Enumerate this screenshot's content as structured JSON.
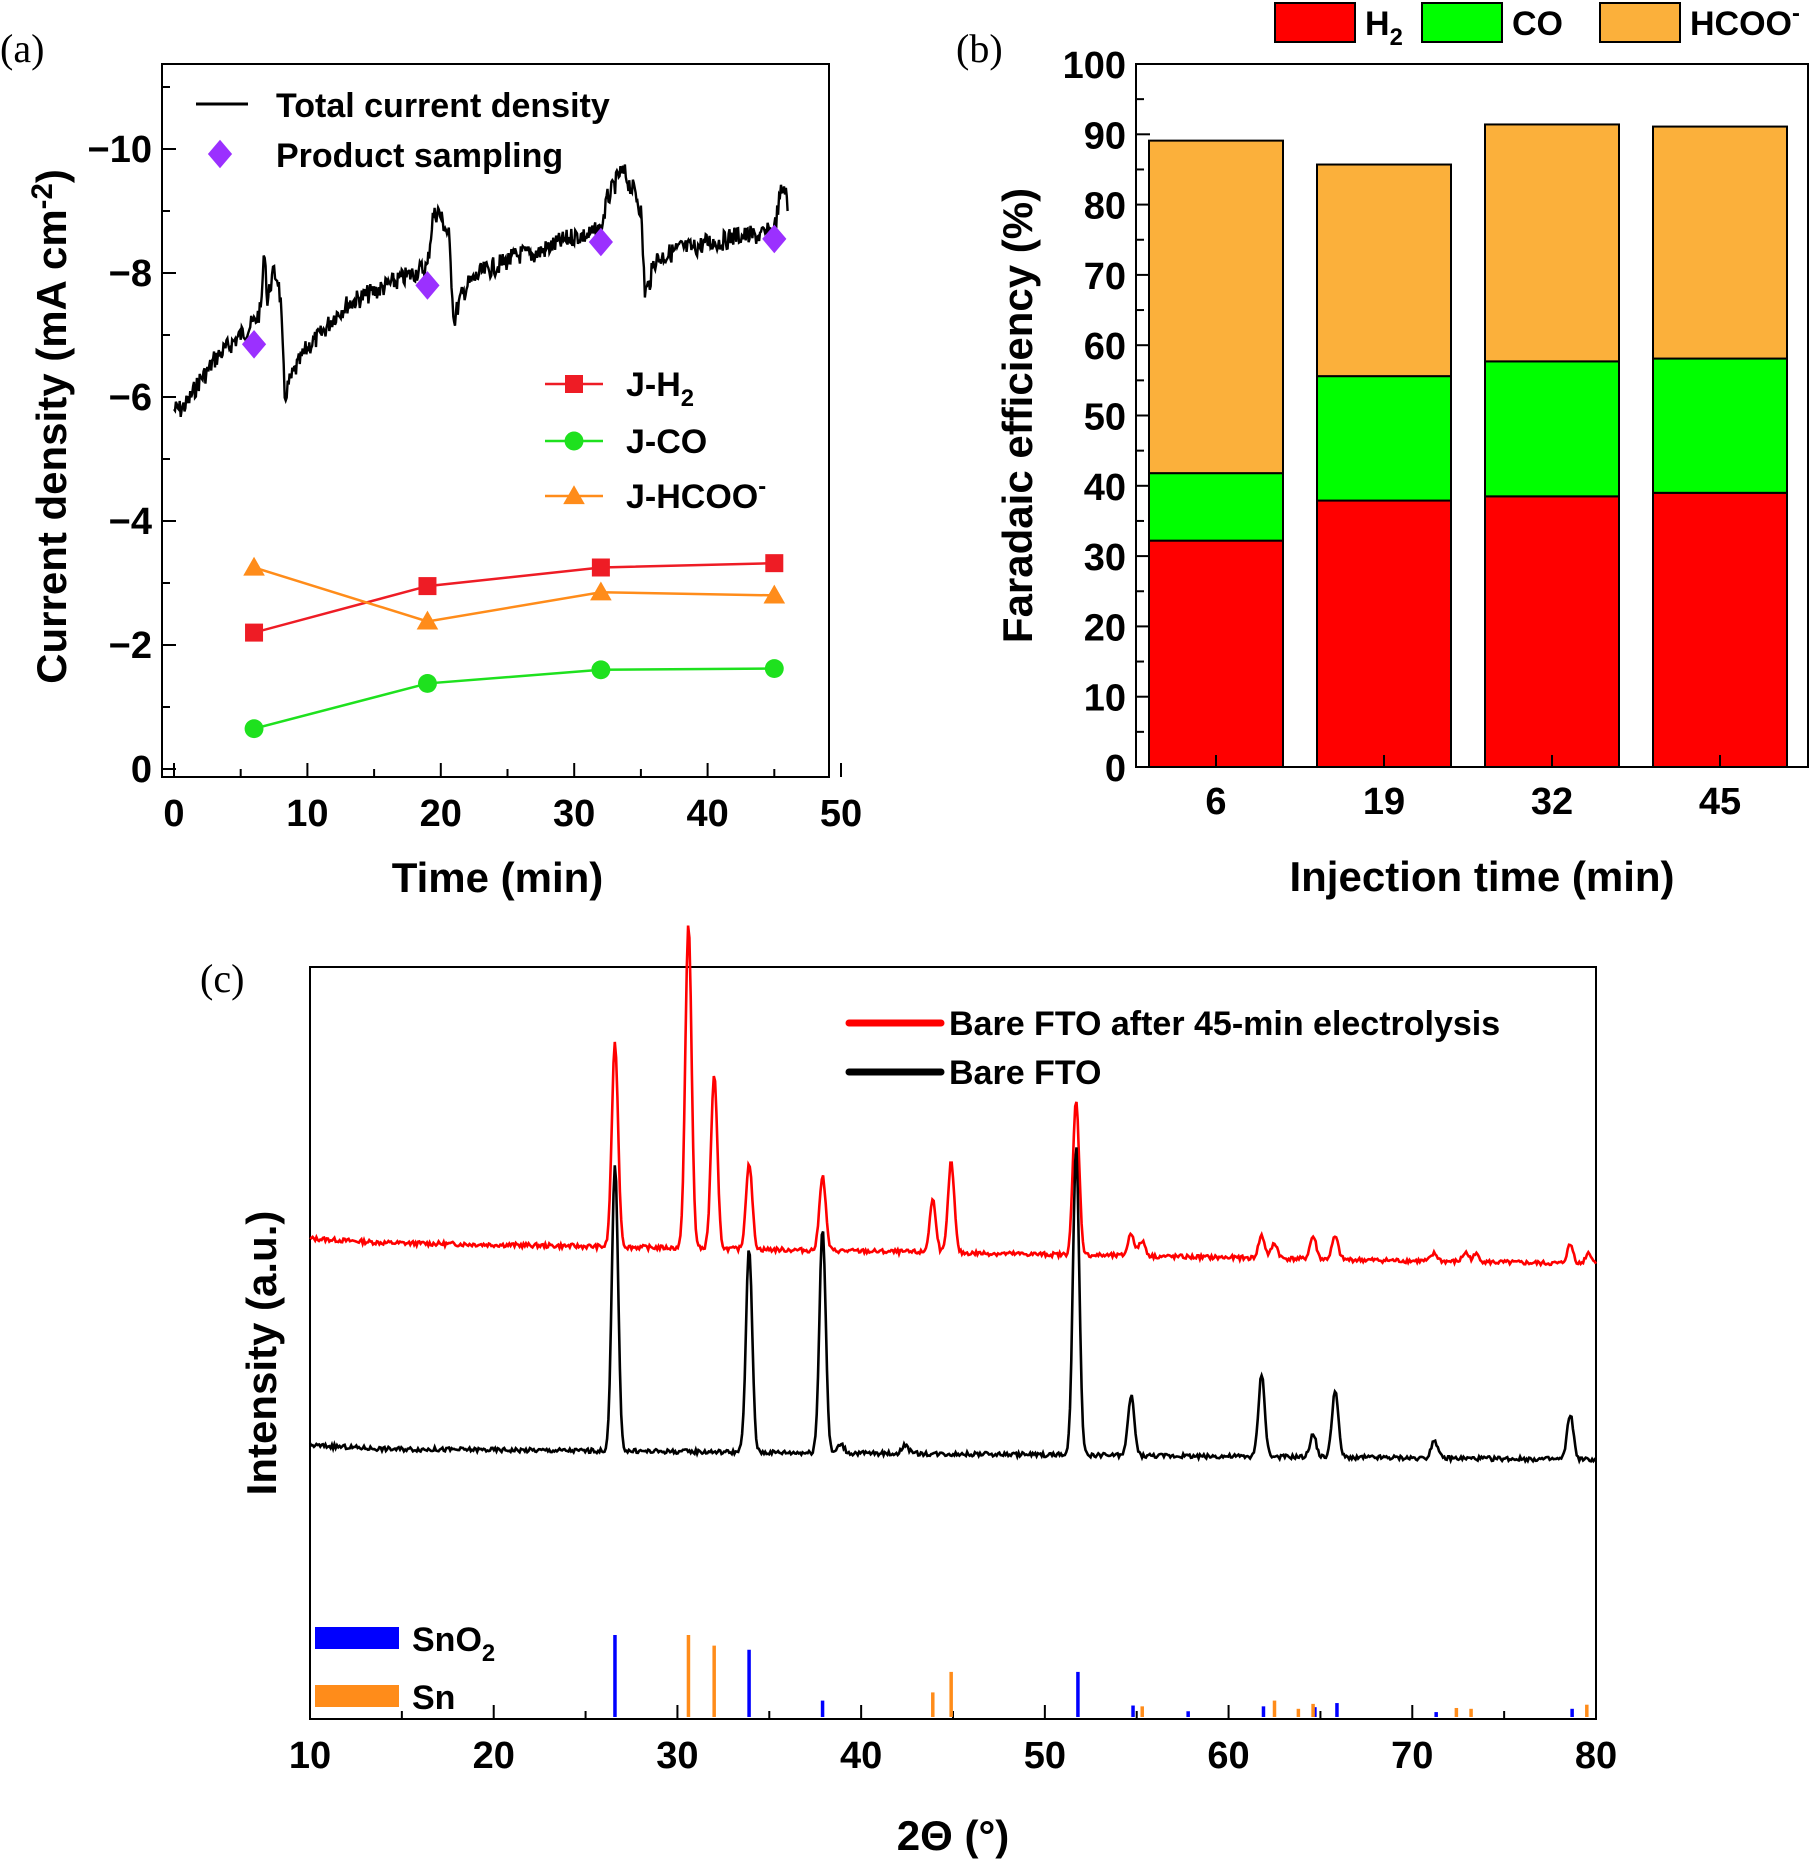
{
  "chart_data": [
    {
      "panel": "(a)",
      "type": "line",
      "xlabel": "Time (min)",
      "ylabel": "Current density (mA cm",
      "ylabel_sup": "-2",
      "ylabel_close": ")",
      "xlim": [
        0,
        50
      ],
      "ylim": [
        0,
        -11.5
      ],
      "xticks": [
        0,
        10,
        20,
        30,
        40,
        50
      ],
      "yticks": [
        0,
        -2,
        -4,
        -6,
        -8,
        -10
      ],
      "ytick_labels": [
        "0",
        "−2",
        "−4",
        "−6",
        "−8",
        "−10"
      ],
      "legend_top": [
        {
          "label": "Total current density",
          "color": "#000000",
          "marker": "line"
        },
        {
          "label": "Product sampling",
          "color": "#9b30ff",
          "marker": "diamond"
        }
      ],
      "total_current_density": {
        "name": "Total current density",
        "color": "#000000",
        "x": [
          0.0,
          0.5,
          1.0,
          1.5,
          2.0,
          2.5,
          3.0,
          3.5,
          4.0,
          4.5,
          5.0,
          5.5,
          6.0,
          6.5,
          6.8,
          7.0,
          7.2,
          7.5,
          7.8,
          8.0,
          8.3,
          8.6,
          9.0,
          9.5,
          10.0,
          11.0,
          12.0,
          13.0,
          14.0,
          15.0,
          16.0,
          17.0,
          18.0,
          19.0,
          19.4,
          19.8,
          20.2,
          20.6,
          21.0,
          21.2,
          21.5,
          22.0,
          23.0,
          24.0,
          25.0,
          26.0,
          27.0,
          28.0,
          29.0,
          30.0,
          31.0,
          32.0,
          32.5,
          33.0,
          33.4,
          33.8,
          34.2,
          34.6,
          35.0,
          35.3,
          35.6,
          36.0,
          37.0,
          38.0,
          39.0,
          40.0,
          41.0,
          42.0,
          43.0,
          44.0,
          45.0,
          45.5,
          45.8,
          46.0
        ],
        "y": [
          -5.8,
          -5.8,
          -5.9,
          -6.1,
          -6.3,
          -6.4,
          -6.6,
          -6.7,
          -6.8,
          -6.9,
          -7.0,
          -7.1,
          -7.2,
          -7.4,
          -8.4,
          -7.5,
          -7.8,
          -8.0,
          -7.9,
          -7.5,
          -6.0,
          -6.2,
          -6.4,
          -6.6,
          -6.8,
          -7.0,
          -7.3,
          -7.5,
          -7.6,
          -7.7,
          -7.8,
          -7.9,
          -8.0,
          -8.1,
          -8.9,
          -9.0,
          -8.8,
          -8.6,
          -7.2,
          -7.4,
          -7.6,
          -7.8,
          -8.0,
          -8.1,
          -8.2,
          -8.3,
          -8.3,
          -8.4,
          -8.5,
          -8.6,
          -8.6,
          -8.7,
          -9.2,
          -9.4,
          -9.6,
          -9.6,
          -9.4,
          -9.3,
          -9.0,
          -7.7,
          -7.8,
          -8.2,
          -8.3,
          -8.4,
          -8.4,
          -8.5,
          -8.5,
          -8.6,
          -8.6,
          -8.6,
          -8.7,
          -9.3,
          -9.4,
          -9.0
        ]
      },
      "product_sampling": {
        "name": "Product sampling",
        "color": "#9b30ff",
        "x": [
          6,
          19,
          32,
          45
        ],
        "y": [
          -6.85,
          -7.8,
          -8.5,
          -8.55
        ]
      },
      "series": [
        {
          "name": "J-H",
          "sub": "2",
          "sup": "",
          "color": "#ee1c25",
          "marker": "square",
          "x": [
            6,
            19,
            32,
            45
          ],
          "y": [
            -2.2,
            -2.95,
            -3.25,
            -3.32
          ]
        },
        {
          "name": "J-CO",
          "sub": "",
          "sup": "",
          "color": "#1ee11e",
          "marker": "circle",
          "x": [
            6,
            19,
            32,
            45
          ],
          "y": [
            -0.65,
            -1.38,
            -1.6,
            -1.62
          ]
        },
        {
          "name": "J-HCOO",
          "sub": "",
          "sup": "-",
          "color": "#ff8c1a",
          "marker": "triangle",
          "x": [
            6,
            19,
            32,
            45
          ],
          "y": [
            -3.25,
            -2.38,
            -2.85,
            -2.8
          ]
        }
      ]
    },
    {
      "panel": "(b)",
      "type": "bar",
      "stacked": true,
      "xlabel": "Injection time (min)",
      "ylabel": "Faradaic efficiency (%)",
      "ylim": [
        0,
        100
      ],
      "yticks": [
        0,
        10,
        20,
        30,
        40,
        50,
        60,
        70,
        80,
        90,
        100
      ],
      "categories": [
        "6",
        "19",
        "32",
        "45"
      ],
      "series": [
        {
          "name": "H",
          "sub": "2",
          "sup": "",
          "color": "#ff0000",
          "values": [
            32.2,
            37.9,
            38.5,
            39.0
          ]
        },
        {
          "name": "CO",
          "sub": "",
          "sup": "",
          "color": "#00ff00",
          "values": [
            9.6,
            17.7,
            19.2,
            19.1
          ]
        },
        {
          "name": "HCOO",
          "sub": "",
          "sup": "-",
          "color": "#fbb03b",
          "values": [
            47.3,
            30.1,
            33.7,
            33.0
          ]
        }
      ]
    },
    {
      "panel": "(c)",
      "type": "line",
      "xlabel": "2Θ (°)",
      "ylabel": "Intensity (a.u.)",
      "xlim": [
        10,
        80
      ],
      "xticks": [
        10,
        20,
        30,
        40,
        50,
        60,
        70,
        80
      ],
      "legend": [
        {
          "label": "Bare FTO after 45-min electrolysis",
          "color": "#ff0000"
        },
        {
          "label": "Bare FTO",
          "color": "#000000"
        }
      ],
      "series": [
        {
          "name": "Bare FTO after 45-min electrolysis",
          "color": "#ff0000",
          "baseline_start": 0.635,
          "baseline_end": 0.605,
          "peaks": [
            [
              26.6,
              0.27
            ],
            [
              30.6,
              0.43
            ],
            [
              32.0,
              0.23
            ],
            [
              33.9,
              0.115
            ],
            [
              37.9,
              0.1
            ],
            [
              43.9,
              0.07
            ],
            [
              44.9,
              0.12
            ],
            [
              51.7,
              0.205
            ],
            [
              54.7,
              0.03
            ],
            [
              55.3,
              0.02
            ],
            [
              61.8,
              0.03
            ],
            [
              62.5,
              0.02
            ],
            [
              64.6,
              0.03
            ],
            [
              65.8,
              0.03
            ],
            [
              71.2,
              0.01
            ],
            [
              72.9,
              0.012
            ],
            [
              73.5,
              0.01
            ],
            [
              78.6,
              0.025
            ],
            [
              79.6,
              0.015
            ]
          ]
        },
        {
          "name": "Bare FTO",
          "color": "#000000",
          "baseline_start": 0.36,
          "baseline_end": 0.345,
          "peaks": [
            [
              26.6,
              0.38
            ],
            [
              33.9,
              0.27
            ],
            [
              37.9,
              0.3
            ],
            [
              38.9,
              0.012
            ],
            [
              42.4,
              0.012
            ],
            [
              51.7,
              0.41
            ],
            [
              54.7,
              0.08
            ],
            [
              61.8,
              0.11
            ],
            [
              64.6,
              0.03
            ],
            [
              65.8,
              0.09
            ],
            [
              71.2,
              0.025
            ],
            [
              78.6,
              0.06
            ]
          ]
        }
      ],
      "reference_sticks": [
        {
          "name": "SnO",
          "sub": "2",
          "color": "#0000ff",
          "positions": [
            [
              26.6,
              1.0
            ],
            [
              33.9,
              0.82
            ],
            [
              37.9,
              0.2
            ],
            [
              51.8,
              0.55
            ],
            [
              54.8,
              0.14
            ],
            [
              57.8,
              0.07
            ],
            [
              61.9,
              0.13
            ],
            [
              64.7,
              0.12
            ],
            [
              65.9,
              0.17
            ],
            [
              71.3,
              0.06
            ],
            [
              78.7,
              0.1
            ]
          ]
        },
        {
          "name": "Sn",
          "sub": "",
          "color": "#ff8c1a",
          "positions": [
            [
              30.6,
              1.0
            ],
            [
              32.0,
              0.87
            ],
            [
              43.9,
              0.3
            ],
            [
              44.9,
              0.55
            ],
            [
              55.3,
              0.13
            ],
            [
              62.5,
              0.2
            ],
            [
              63.8,
              0.1
            ],
            [
              64.6,
              0.16
            ],
            [
              72.4,
              0.11
            ],
            [
              73.2,
              0.1
            ],
            [
              79.5,
              0.15
            ]
          ]
        }
      ]
    }
  ]
}
